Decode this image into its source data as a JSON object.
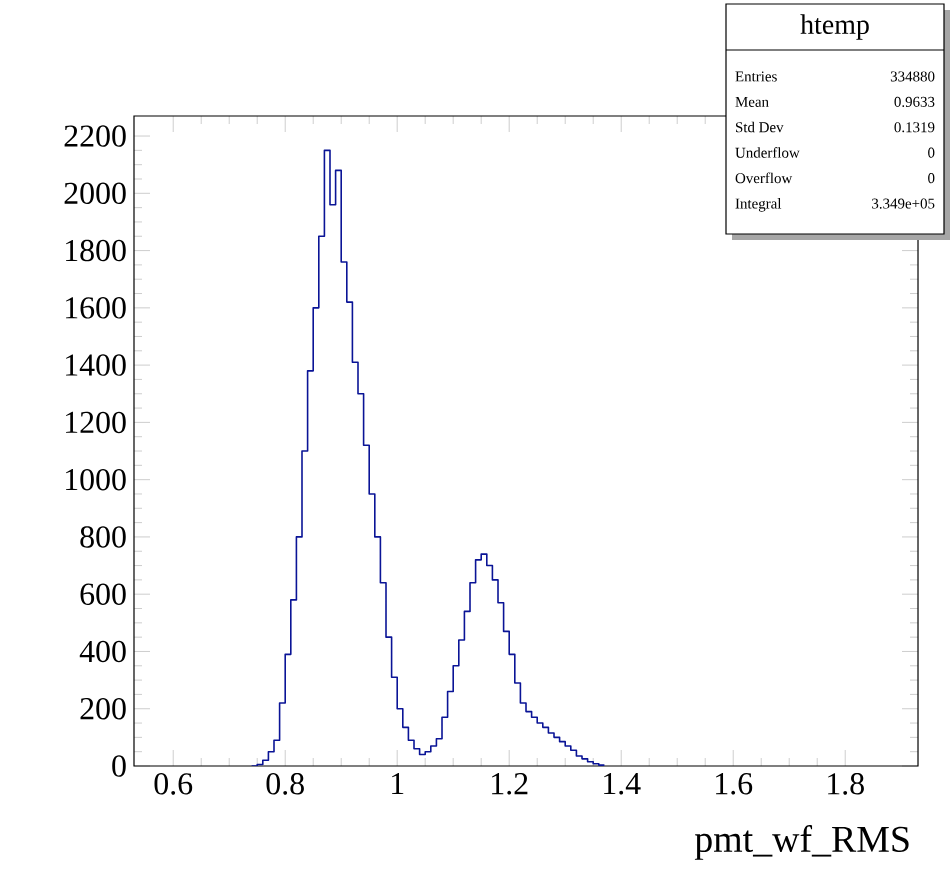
{
  "chart_data": {
    "type": "histogram",
    "xlabel": "pmt_wf_RMS",
    "color": "#0a1496",
    "bins": [
      0.74,
      0.75,
      0.76,
      0.77,
      0.78,
      0.79,
      0.8,
      0.81,
      0.82,
      0.83,
      0.84,
      0.85,
      0.86,
      0.87,
      0.88,
      0.89,
      0.9,
      0.91,
      0.92,
      0.93,
      0.94,
      0.95,
      0.96,
      0.97,
      0.98,
      0.99,
      1.0,
      1.01,
      1.02,
      1.03,
      1.04,
      1.05,
      1.06,
      1.07,
      1.08,
      1.09,
      1.1,
      1.11,
      1.12,
      1.13,
      1.14,
      1.15,
      1.16,
      1.17,
      1.18,
      1.19,
      1.2,
      1.21,
      1.22,
      1.23,
      1.24,
      1.25,
      1.26,
      1.27,
      1.28,
      1.29,
      1.3,
      1.31,
      1.32,
      1.33,
      1.34,
      1.35,
      1.36,
      1.37
    ],
    "values": [
      0,
      5,
      20,
      50,
      90,
      220,
      390,
      580,
      800,
      1100,
      1380,
      1600,
      1850,
      2150,
      1960,
      2080,
      1760,
      1620,
      1410,
      1300,
      1120,
      950,
      800,
      640,
      450,
      310,
      200,
      135,
      90,
      60,
      40,
      50,
      70,
      95,
      170,
      260,
      350,
      440,
      540,
      640,
      720,
      740,
      700,
      650,
      570,
      470,
      390,
      290,
      220,
      190,
      170,
      150,
      135,
      115,
      100,
      85,
      70,
      55,
      35,
      25,
      15,
      8,
      3
    ],
    "xlim": [
      0.53,
      1.93
    ],
    "ylim": [
      0,
      2270
    ],
    "xticks": [
      0.6,
      0.8,
      1,
      1.2,
      1.4,
      1.6,
      1.8
    ],
    "yticks": [
      0,
      200,
      400,
      600,
      800,
      1000,
      1200,
      1400,
      1600,
      1800,
      2000,
      2200
    ],
    "annotations": [
      "htemp",
      "Entries",
      "334880",
      "Mean",
      "0.9633",
      "Std Dev",
      "0.1319",
      "Underflow",
      "0",
      "Overflow",
      "0",
      "Integral",
      "3.349e+05"
    ]
  }
}
